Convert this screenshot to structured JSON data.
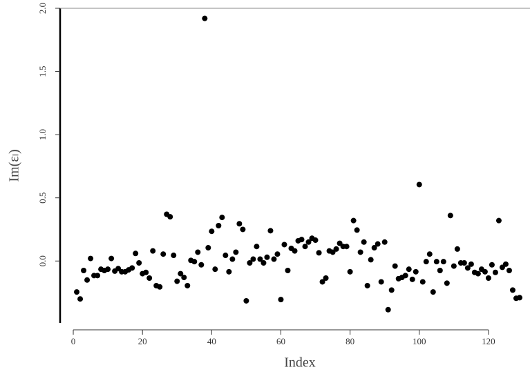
{
  "chart_data": {
    "type": "scatter",
    "xlabel": "Index",
    "ylabel": "Im(εₗ)",
    "color": "#000000",
    "x": [
      1,
      2,
      3,
      4,
      5,
      6,
      7,
      8,
      9,
      10,
      11,
      12,
      13,
      14,
      15,
      16,
      17,
      18,
      19,
      20,
      21,
      22,
      23,
      24,
      25,
      26,
      27,
      28,
      29,
      30,
      31,
      32,
      33,
      34,
      35,
      36,
      37,
      38,
      39,
      40,
      41,
      42,
      43,
      44,
      45,
      46,
      47,
      48,
      49,
      50,
      51,
      52,
      53,
      54,
      55,
      56,
      57,
      58,
      59,
      60,
      61,
      62,
      63,
      64,
      65,
      66,
      67,
      68,
      69,
      70,
      71,
      72,
      73,
      74,
      75,
      76,
      77,
      78,
      79,
      80,
      81,
      82,
      83,
      84,
      85,
      86,
      87,
      88,
      89,
      90,
      91,
      92,
      93,
      94,
      95,
      96,
      97,
      98,
      99,
      100,
      101,
      102,
      103,
      104,
      105,
      106,
      107,
      108,
      109,
      110,
      111,
      112,
      113,
      114,
      115,
      116,
      117,
      118,
      119,
      120,
      121,
      122,
      123,
      124,
      125,
      126,
      127,
      128,
      129
    ],
    "values": [
      -0.245,
      -0.3,
      -0.075,
      -0.15,
      0.02,
      -0.115,
      -0.115,
      -0.065,
      -0.075,
      -0.065,
      0.02,
      -0.08,
      -0.06,
      -0.085,
      -0.085,
      -0.07,
      -0.055,
      0.06,
      -0.015,
      -0.1,
      -0.09,
      -0.135,
      0.08,
      -0.195,
      -0.205,
      0.055,
      0.37,
      0.35,
      0.045,
      -0.16,
      -0.1,
      -0.13,
      -0.195,
      0.005,
      -0.005,
      0.07,
      -0.03,
      1.92,
      0.105,
      0.235,
      -0.065,
      0.28,
      0.345,
      0.045,
      -0.085,
      0.015,
      0.07,
      0.295,
      0.25,
      -0.315,
      -0.015,
      0.015,
      0.115,
      0.015,
      -0.015,
      0.03,
      0.24,
      0.015,
      0.055,
      -0.305,
      0.13,
      -0.075,
      0.1,
      0.08,
      0.16,
      0.17,
      0.115,
      0.15,
      0.18,
      0.165,
      0.065,
      -0.165,
      -0.135,
      0.08,
      0.07,
      0.095,
      0.14,
      0.115,
      0.115,
      -0.085,
      0.32,
      0.245,
      0.07,
      0.15,
      -0.195,
      0.01,
      0.105,
      0.135,
      -0.165,
      0.15,
      -0.385,
      -0.23,
      -0.04,
      -0.14,
      -0.13,
      -0.115,
      -0.065,
      -0.145,
      -0.085,
      0.605,
      -0.165,
      -0.005,
      0.055,
      -0.245,
      -0.005,
      -0.075,
      -0.005,
      -0.175,
      0.36,
      -0.04,
      0.095,
      -0.015,
      -0.015,
      -0.055,
      -0.025,
      -0.09,
      -0.1,
      -0.065,
      -0.085,
      -0.135,
      -0.03,
      -0.09,
      0.32,
      -0.05,
      -0.025,
      -0.075,
      -0.23,
      -0.295,
      -0.29
    ],
    "xlim": [
      -3.8,
      132
    ],
    "ylim": [
      -0.49,
      2.0
    ],
    "xticks": [
      0,
      20,
      40,
      60,
      80,
      100,
      120
    ],
    "yticks": [
      {
        "value": 0,
        "label": "0.0"
      },
      {
        "value": 0.5,
        "label": "0.5"
      },
      {
        "value": 1,
        "label": "1.0"
      },
      {
        "value": 1.5,
        "label": "1.5"
      },
      {
        "value": 2,
        "label": "2.0"
      }
    ]
  }
}
